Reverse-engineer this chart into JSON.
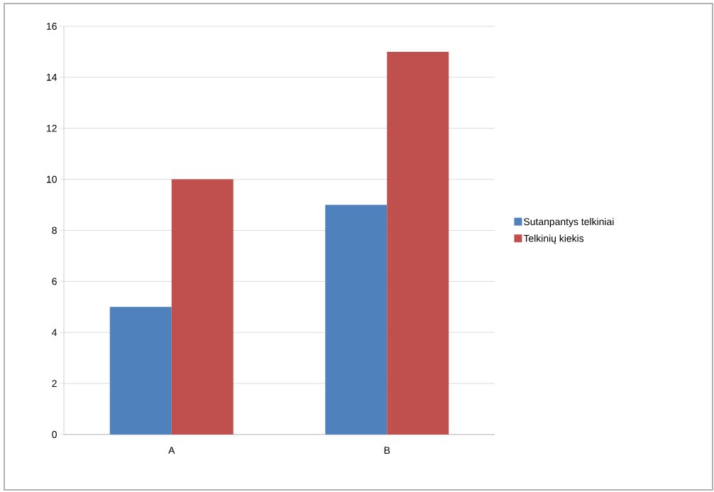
{
  "chart_data": {
    "type": "bar",
    "categories": [
      "A",
      "B"
    ],
    "series": [
      {
        "name": "Sutanpantys telkiniai",
        "color": "#4f81bd",
        "values": [
          5,
          9
        ]
      },
      {
        "name": "Telkinių kiekis",
        "color": "#c0504d",
        "values": [
          10,
          15
        ]
      }
    ],
    "ylim": [
      0,
      16
    ],
    "yticks": [
      0,
      2,
      4,
      6,
      8,
      10,
      12,
      14,
      16
    ],
    "grid": "y",
    "legend": "right"
  }
}
